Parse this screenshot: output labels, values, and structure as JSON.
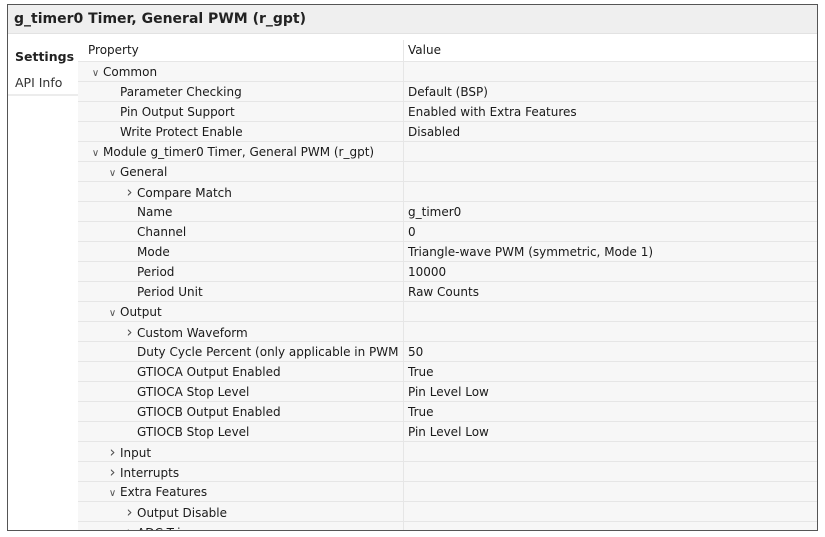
{
  "title": "g_timer0 Timer, General PWM (r_gpt)",
  "tabs": [
    {
      "label": "Settings",
      "active": true
    },
    {
      "label": "API Info",
      "active": false
    }
  ],
  "table": {
    "headers": {
      "property": "Property",
      "value": "Value"
    },
    "rows": [
      {
        "property": "Common",
        "value": "",
        "level": 0,
        "expander": "expanded"
      },
      {
        "property": "Parameter Checking",
        "value": "Default (BSP)",
        "level": 1,
        "expander": "none"
      },
      {
        "property": "Pin Output Support",
        "value": "Enabled with Extra Features",
        "level": 1,
        "expander": "none"
      },
      {
        "property": "Write Protect Enable",
        "value": "Disabled",
        "level": 1,
        "expander": "none"
      },
      {
        "property": "Module g_timer0 Timer, General PWM (r_gpt)",
        "value": "",
        "level": 0,
        "expander": "expanded"
      },
      {
        "property": "General",
        "value": "",
        "level": 1,
        "expander": "expanded"
      },
      {
        "property": "Compare Match",
        "value": "",
        "level": 2,
        "expander": "collapsed"
      },
      {
        "property": "Name",
        "value": "g_timer0",
        "level": 2,
        "expander": "none"
      },
      {
        "property": "Channel",
        "value": "0",
        "level": 2,
        "expander": "none"
      },
      {
        "property": "Mode",
        "value": "Triangle-wave PWM (symmetric, Mode 1)",
        "level": 2,
        "expander": "none"
      },
      {
        "property": "Period",
        "value": "10000",
        "level": 2,
        "expander": "none"
      },
      {
        "property": "Period Unit",
        "value": "Raw Counts",
        "level": 2,
        "expander": "none"
      },
      {
        "property": "Output",
        "value": "",
        "level": 1,
        "expander": "expanded"
      },
      {
        "property": "Custom Waveform",
        "value": "",
        "level": 2,
        "expander": "collapsed"
      },
      {
        "property": "Duty Cycle Percent (only applicable in PWM mc",
        "value": "50",
        "level": 2,
        "expander": "none"
      },
      {
        "property": "GTIOCA Output Enabled",
        "value": "True",
        "level": 2,
        "expander": "none"
      },
      {
        "property": "GTIOCA Stop Level",
        "value": "Pin Level Low",
        "level": 2,
        "expander": "none"
      },
      {
        "property": "GTIOCB Output Enabled",
        "value": "True",
        "level": 2,
        "expander": "none"
      },
      {
        "property": "GTIOCB Stop Level",
        "value": "Pin Level Low",
        "level": 2,
        "expander": "none"
      },
      {
        "property": "Input",
        "value": "",
        "level": 1,
        "expander": "collapsed"
      },
      {
        "property": "Interrupts",
        "value": "",
        "level": 1,
        "expander": "collapsed"
      },
      {
        "property": "Extra Features",
        "value": "",
        "level": 1,
        "expander": "expanded"
      },
      {
        "property": "Output Disable",
        "value": "",
        "level": 2,
        "expander": "collapsed"
      },
      {
        "property": "ADC Tri",
        "value": "",
        "level": 2,
        "expander": "collapsed"
      }
    ]
  }
}
